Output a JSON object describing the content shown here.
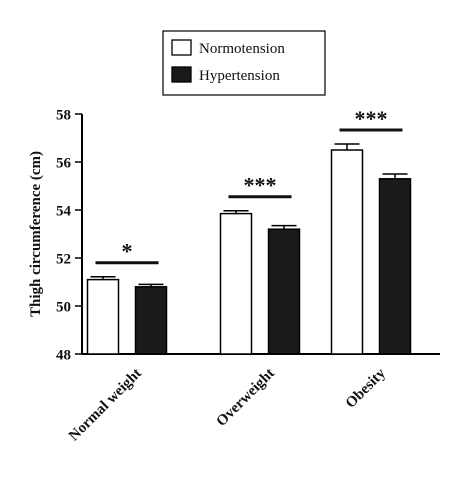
{
  "chart_data": {
    "type": "bar",
    "title": "",
    "xlabel": "",
    "ylabel": "Thigh circumference (cm)",
    "ylim": [
      48,
      58
    ],
    "yticks": [
      48,
      50,
      52,
      54,
      56,
      58
    ],
    "categories": [
      "Normal weight",
      "Overweight",
      "Obesity"
    ],
    "series": [
      {
        "name": "Normotension",
        "values": [
          51.1,
          53.85,
          56.5
        ],
        "errors": [
          0.12,
          0.12,
          0.25
        ],
        "color": "#ffffff"
      },
      {
        "name": "Hypertension",
        "values": [
          50.8,
          53.2,
          55.3
        ],
        "errors": [
          0.1,
          0.15,
          0.2
        ],
        "color": "#1a1a1a"
      }
    ],
    "significance": [
      "*",
      "***",
      "***"
    ],
    "legend_position": "top-center",
    "grid": false
  }
}
